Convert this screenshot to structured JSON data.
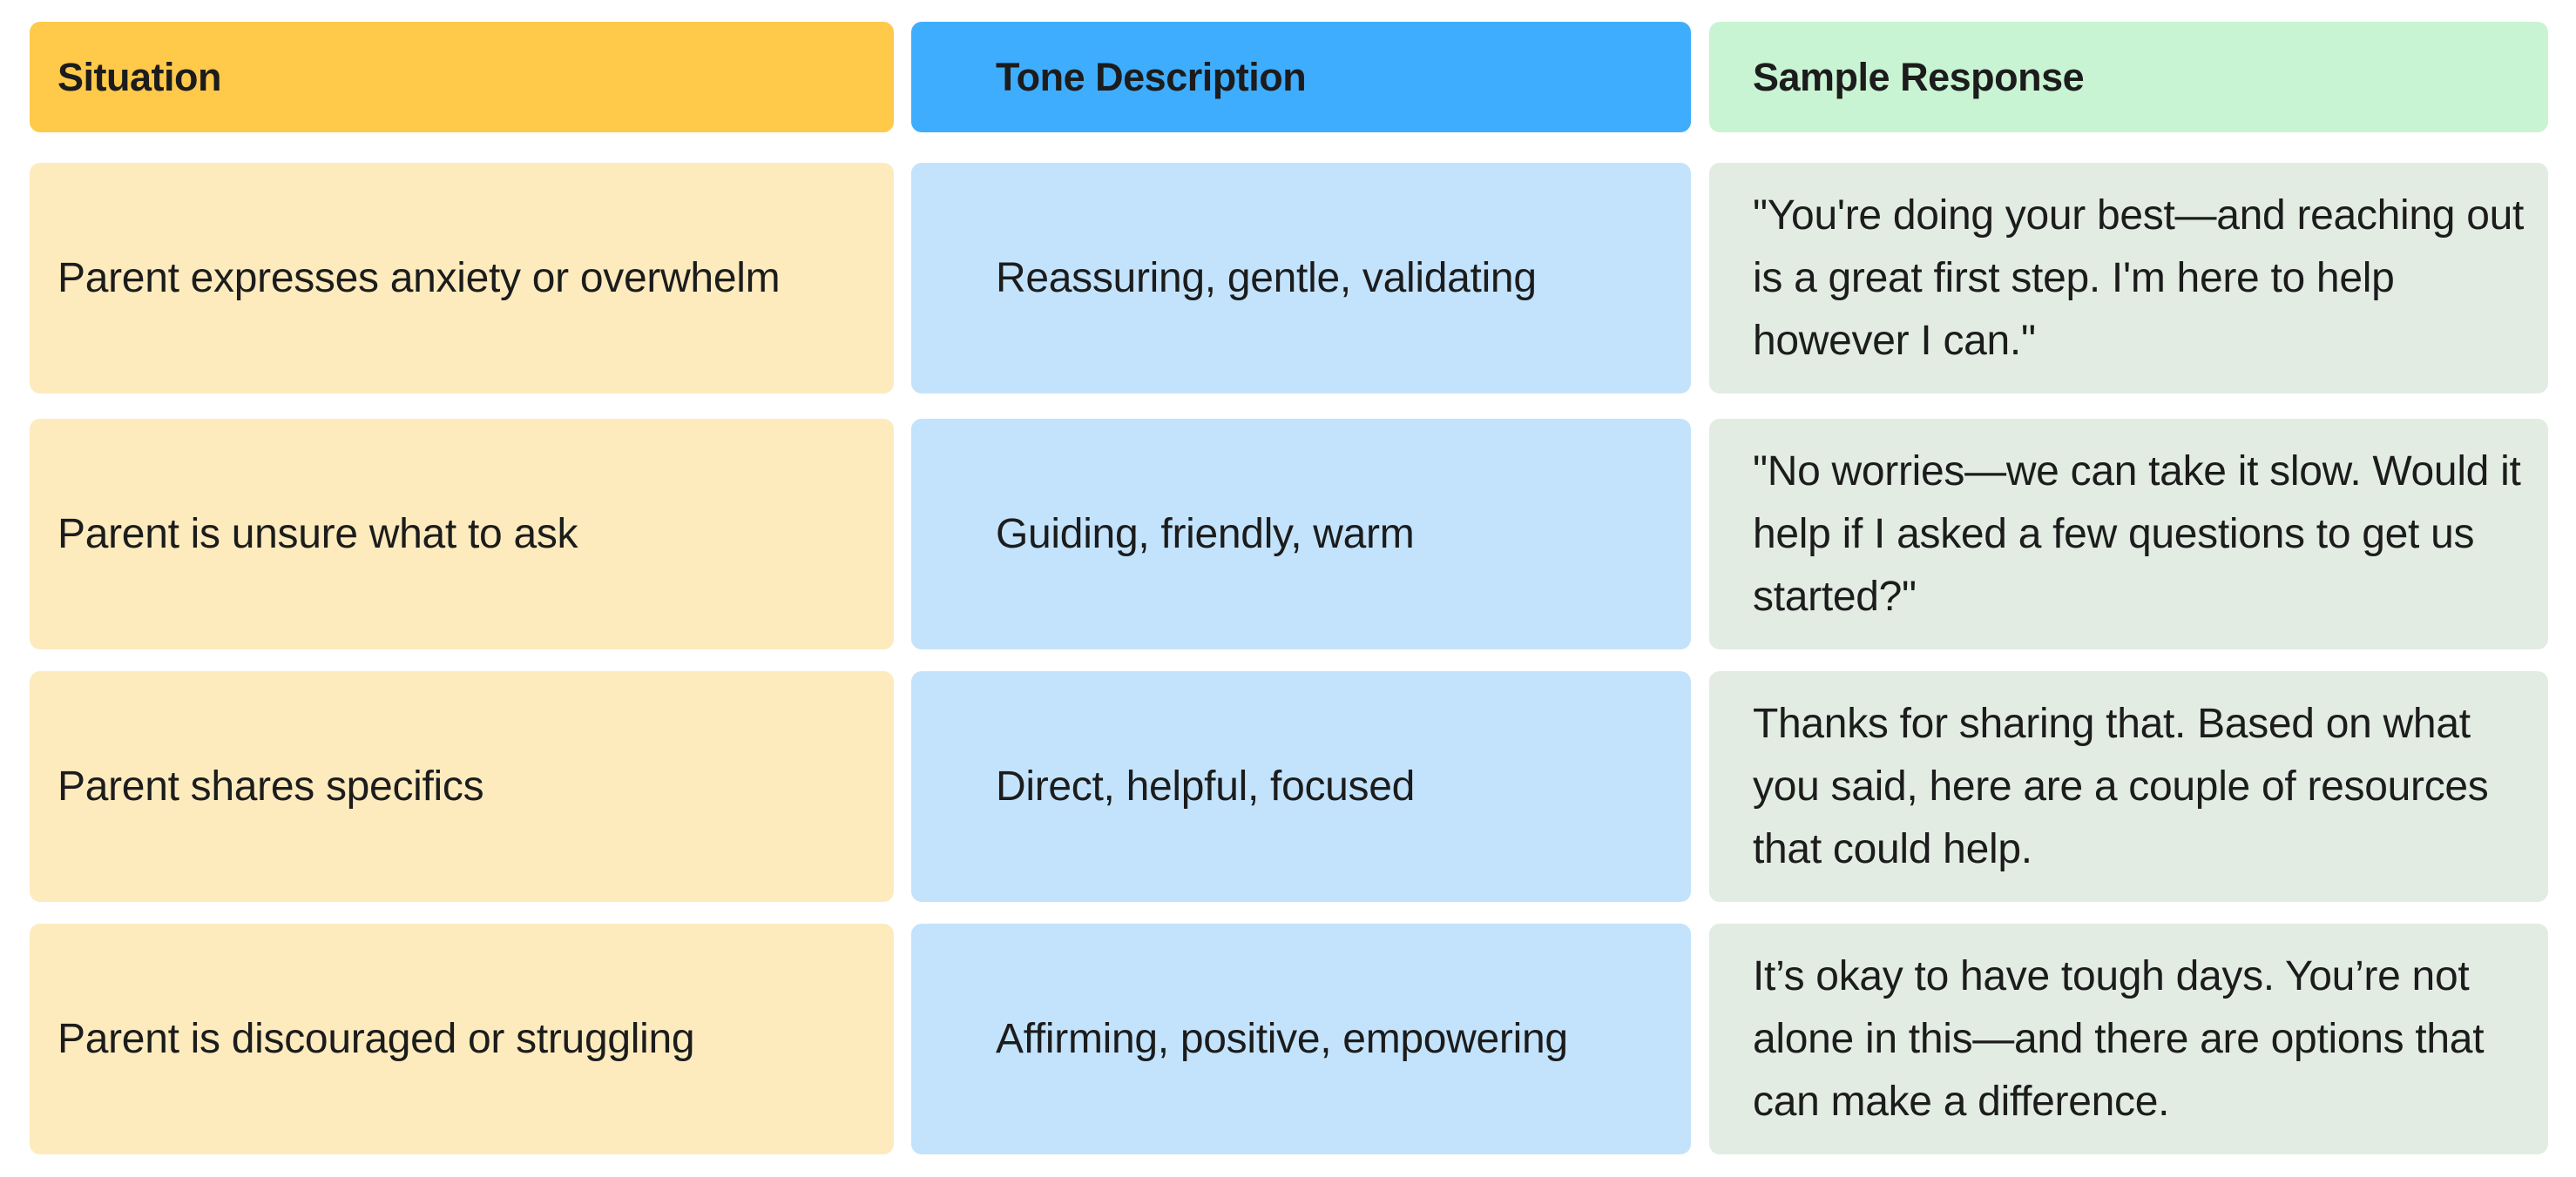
{
  "colors": {
    "situation_header": "#ffc94a",
    "tone_header": "#3fadfe",
    "sample_header": "#c9f4d3",
    "situation_cell": "#fdebbe",
    "tone_cell": "#c3e3fd",
    "sample_cell": "#e2ece3"
  },
  "table": {
    "headers": [
      "Situation",
      "Tone Description",
      "Sample Response"
    ],
    "rows": [
      {
        "situation": "Parent expresses anxiety or overwhelm",
        "tone": "Reassuring, gentle, validating",
        "sample": "\"You're doing your best—and reaching out is a great first step. I'm here to help however I can.\""
      },
      {
        "situation": "Parent is unsure what to ask",
        "tone": "Guiding, friendly, warm",
        "sample": "\"No worries—we can take it slow. Would it help if I asked a few questions to get us started?\""
      },
      {
        "situation": "Parent shares specifics",
        "tone": "Direct, helpful, focused",
        "sample": "Thanks for sharing that. Based on what you said, here are a couple of resources that could help."
      },
      {
        "situation": "Parent is discouraged or struggling",
        "tone": "Affirming, positive, empowering",
        "sample": "It’s okay to have tough days. You’re not alone in this—and there are options that can make a difference."
      }
    ]
  }
}
